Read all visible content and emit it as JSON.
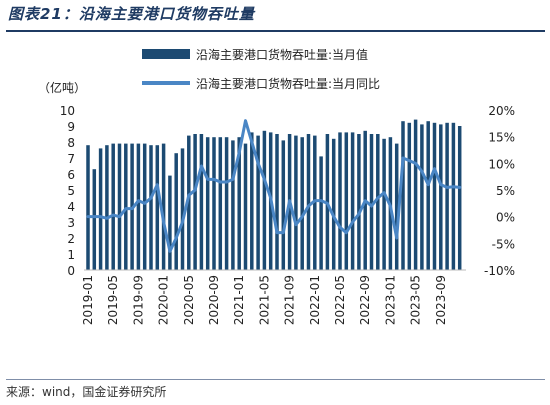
{
  "title": "图表21：沿海主要港口货物吞吐量",
  "source": "来源：wind，国金证券研究所",
  "colors": {
    "bar": "#1c4a72",
    "line": "#4a86c5",
    "title": "#1f3b63"
  },
  "chart_data": {
    "type": "bar",
    "y_unit": "（亿吨）",
    "y_left_ticks": [
      "10",
      "9",
      "8",
      "7",
      "6",
      "5",
      "4",
      "3",
      "2",
      "1",
      "0"
    ],
    "y_right_ticks": [
      "20%",
      "15%",
      "10%",
      "5%",
      "0%",
      "-5%",
      "-10%"
    ],
    "ylim_left": [
      0,
      10
    ],
    "ylim_right": [
      -10,
      20
    ],
    "x_tick_labels": [
      "2019-01",
      "2019-05",
      "2019-09",
      "2020-01",
      "2020-05",
      "2020-09",
      "2021-01",
      "2021-05",
      "2021-09",
      "2022-01",
      "2022-05",
      "2022-09",
      "2023-01",
      "2023-05",
      "2023-09"
    ],
    "categories": [
      "2019-01",
      "2019-02",
      "2019-03",
      "2019-04",
      "2019-05",
      "2019-06",
      "2019-07",
      "2019-08",
      "2019-09",
      "2019-10",
      "2019-11",
      "2019-12",
      "2020-01",
      "2020-02",
      "2020-03",
      "2020-04",
      "2020-05",
      "2020-06",
      "2020-07",
      "2020-08",
      "2020-09",
      "2020-10",
      "2020-11",
      "2020-12",
      "2021-01",
      "2021-02",
      "2021-03",
      "2021-04",
      "2021-05",
      "2021-06",
      "2021-07",
      "2021-08",
      "2021-09",
      "2021-10",
      "2021-11",
      "2021-12",
      "2022-01",
      "2022-02",
      "2022-03",
      "2022-04",
      "2022-05",
      "2022-06",
      "2022-07",
      "2022-08",
      "2022-09",
      "2022-10",
      "2022-11",
      "2022-12",
      "2023-01",
      "2023-02",
      "2023-03",
      "2023-04",
      "2023-05",
      "2023-06",
      "2023-07",
      "2023-08",
      "2023-09",
      "2023-10",
      "2023-11",
      "2023-12"
    ],
    "series": [
      {
        "name": "沿海主要港口货物吞吐量:当月值",
        "type": "bar",
        "axis": "left",
        "values": [
          7.8,
          6.3,
          7.6,
          7.8,
          7.9,
          7.9,
          7.9,
          7.9,
          7.9,
          7.9,
          7.8,
          7.8,
          7.9,
          5.9,
          7.3,
          7.6,
          8.4,
          8.5,
          8.5,
          8.3,
          8.3,
          8.3,
          8.3,
          8.1,
          8.3,
          7.9,
          8.6,
          8.4,
          8.7,
          8.6,
          8.5,
          8.1,
          8.5,
          8.4,
          8.3,
          8.5,
          8.4,
          7.1,
          8.5,
          8.2,
          8.6,
          8.6,
          8.6,
          8.5,
          8.7,
          8.5,
          8.5,
          8.2,
          8.3,
          7.9,
          9.3,
          9.2,
          9.4,
          9.1,
          9.3,
          9.2,
          9.1,
          9.2,
          9.2,
          9.0
        ]
      },
      {
        "name": "沿海主要港口货物吞吐量:当月同比",
        "type": "line",
        "axis": "right",
        "values": [
          0,
          0,
          0,
          -0.3,
          0.3,
          0,
          1.5,
          1.5,
          3,
          2.5,
          3.5,
          6,
          -1,
          -6.5,
          -4,
          -1,
          4,
          5,
          9.5,
          7,
          7,
          6.5,
          6.5,
          7,
          12,
          18,
          14,
          10,
          7,
          3.5,
          -3,
          -3,
          3,
          -1.5,
          0,
          2,
          3,
          3,
          2.5,
          0,
          -2,
          -3,
          -1,
          0.5,
          3,
          2,
          3.5,
          4.5,
          2,
          -4,
          11,
          10.5,
          10,
          8.5,
          6,
          9,
          6,
          5.5,
          5.6,
          5.5
        ]
      }
    ]
  }
}
